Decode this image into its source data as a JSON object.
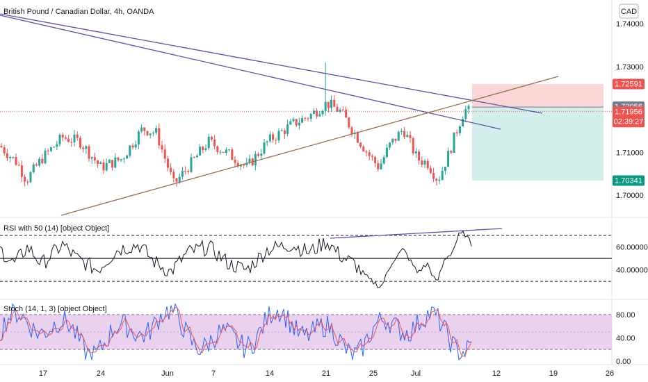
{
  "chart_data": [
    {
      "type": "candlestick",
      "title": "British Pound / Canadian Dollar, 4h, OANDA",
      "currency": "CAD",
      "ylim": [
        1.695,
        1.7455
      ],
      "y_ticks": [
        "1.74000",
        "1.73000",
        "1.71000",
        "1.70000"
      ],
      "x_ticks": [
        "17",
        "24",
        "Jun",
        "7",
        "14",
        "21",
        "25",
        "Jul",
        "12",
        "19",
        "26"
      ],
      "price_tags": [
        {
          "label": "1.72591",
          "value": 1.72591,
          "color": "#ef5350"
        },
        {
          "label": "1.72056",
          "value": 1.72056,
          "color": "#787b86"
        },
        {
          "label": "1.71956",
          "value": 1.71956,
          "color": "#ef5350",
          "sub": "02:39:27"
        },
        {
          "label": "1.70341",
          "value": 1.70341,
          "color": "#089981"
        }
      ],
      "last_price": 1.71956,
      "position": {
        "entry": 1.72056,
        "stop": 1.72591,
        "target": 1.70341
      },
      "colors": {
        "up": "#26a69a",
        "down": "#ef5350",
        "trendline": "#5b4fa8",
        "support": "#9c6b4a"
      }
    },
    {
      "type": "line",
      "title": "RSI with 50 (14) [object Object]",
      "ylim": [
        15,
        85
      ],
      "y_ticks": [
        "60.00000",
        "40.00000"
      ],
      "levels": [
        70,
        50,
        30
      ],
      "color": "#131722"
    },
    {
      "type": "line",
      "title": "Stoch (14, 1, 3) [object Object]",
      "ylim": [
        -5,
        105
      ],
      "y_ticks": [
        "80.00",
        "40.00",
        "0.00"
      ],
      "band": [
        20,
        80
      ],
      "series": [
        {
          "role": "k",
          "color": "#2962ff"
        },
        {
          "role": "d",
          "color": "#ef5350"
        }
      ],
      "band_color": "#e1bee7"
    }
  ]
}
